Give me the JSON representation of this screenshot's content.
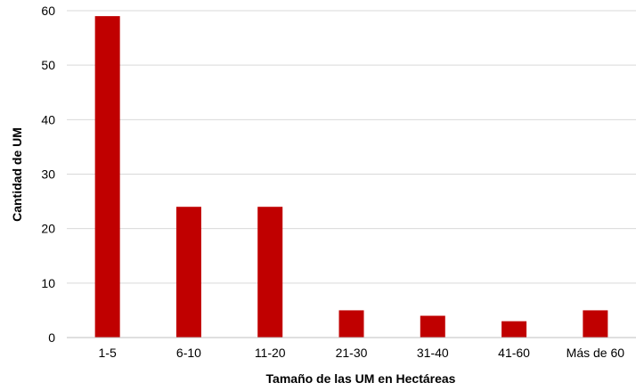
{
  "chart_data": {
    "type": "bar",
    "categories": [
      "1-5",
      "6-10",
      "11-20",
      "21-30",
      "31-40",
      "41-60",
      "Más de 60"
    ],
    "values": [
      59,
      24,
      24,
      5,
      4,
      3,
      5
    ],
    "xlabel": "Tamaño de las UM en Hectáreas",
    "ylabel": "Cantidad de UM",
    "ylim": [
      0,
      60
    ],
    "yticks": [
      0,
      10,
      20,
      30,
      40,
      50,
      60
    ],
    "grid": true,
    "legend": "none",
    "bar_color": "#C00000",
    "grid_color": "#D9D9D9"
  }
}
